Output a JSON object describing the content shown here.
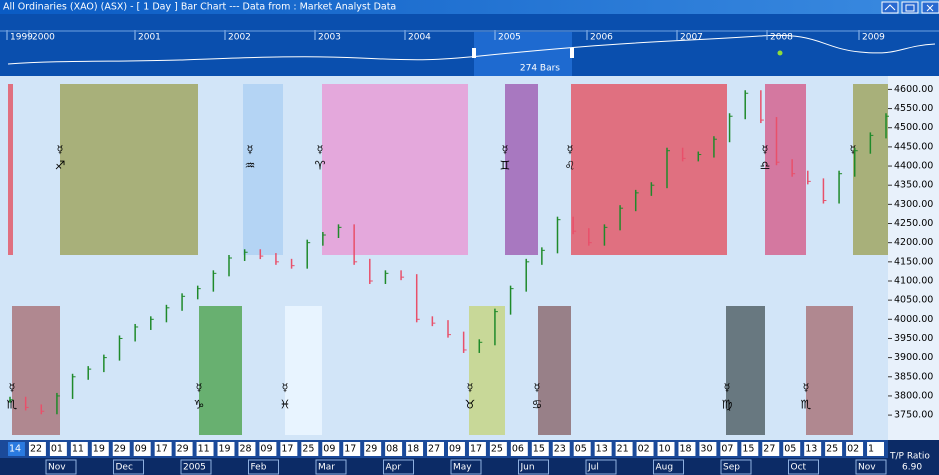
{
  "window": {
    "title": "All Ordinaries (XAO) (ASX) - [ 1 Day ] Bar Chart --- Data from : Market Analyst Data"
  },
  "navigator": {
    "years": [
      "1999",
      "2000",
      "2001",
      "2002",
      "2003",
      "2004",
      "2005",
      "2006",
      "2007",
      "2008",
      "2009"
    ],
    "bars_label": "274 Bars"
  },
  "chart_data": {
    "type": "bar",
    "values": [
      3790,
      3770,
      3760,
      3800,
      3850,
      3870,
      3900,
      3950,
      3980,
      4000,
      4030,
      4060,
      4080,
      4120,
      4160,
      4175,
      4165,
      4150,
      4140,
      4200,
      4220,
      4240,
      4150,
      4100,
      4120,
      4110,
      4000,
      3990,
      3960,
      3920,
      3940,
      4020,
      4080,
      4150,
      4180,
      4260,
      4230,
      4200,
      4240,
      4290,
      4330,
      4350,
      4440,
      4420,
      4430,
      4470,
      4530,
      4590,
      4520,
      4410,
      4380,
      4360,
      4310,
      4380,
      4440,
      4480,
      4530
    ],
    "up_color": "#1f8a2a",
    "down_color": "#e8506a",
    "ylim": [
      3685,
      4635
    ],
    "yticks": [
      {
        "value": 4600,
        "label": "4600.00"
      },
      {
        "value": 4550,
        "label": "4550.00"
      },
      {
        "value": 4500,
        "label": "4500.00"
      },
      {
        "value": 4450,
        "label": "4450.00"
      },
      {
        "value": 4400,
        "label": "4400.00"
      },
      {
        "value": 4350,
        "label": "4350.00"
      },
      {
        "value": 4300,
        "label": "4300.00"
      },
      {
        "value": 4250,
        "label": "4250.00"
      },
      {
        "value": 4200,
        "label": "4200.00"
      },
      {
        "value": 4150,
        "label": "4150.00"
      },
      {
        "value": 4100,
        "label": "4100.00"
      },
      {
        "value": 4050,
        "label": "4050.00"
      },
      {
        "value": 4000,
        "label": "4000.00"
      },
      {
        "value": 3950,
        "label": "3950.00"
      },
      {
        "value": 3900,
        "label": "3900.00"
      },
      {
        "value": 3850,
        "label": "3850.00"
      },
      {
        "value": 3800,
        "label": "3800.00"
      },
      {
        "value": 3750,
        "label": "3750.00"
      }
    ],
    "upper_zones": [
      {
        "color": "#e07080"
      },
      {
        "color": "#a8b07a",
        "planet": "☿",
        "sign": "♐"
      },
      {
        "color": "#b4d4f4",
        "planet": "☿",
        "sign": "♒"
      },
      {
        "color": "#e4a8dc",
        "planet": "☿",
        "sign": "♈"
      },
      {
        "color": "#a878c0",
        "planet": "☿",
        "sign": "♊"
      },
      {
        "color": "#e07080",
        "planet": "☿",
        "sign": "♌"
      },
      {
        "color": "#d478a0",
        "planet": "☿",
        "sign": "♎"
      },
      {
        "color": "#a8b07a",
        "planet": "☿"
      }
    ],
    "lower_zones": [
      {
        "color": "#b08890",
        "planet": "☿",
        "sign": "♏"
      },
      {
        "color": "#68b070",
        "planet": "☿",
        "sign": "♑"
      },
      {
        "color": "#e8f4ff",
        "planet": "☿",
        "sign": "♓"
      },
      {
        "color": "#c8d898",
        "planet": "☿",
        "sign": "♉"
      },
      {
        "color": "#988088",
        "planet": "☿",
        "sign": "♋"
      },
      {
        "color": "#687880",
        "planet": "☿",
        "sign": "♍"
      },
      {
        "color": "#b08890",
        "planet": "☿",
        "sign": "♏"
      }
    ],
    "day_labels": [
      "14",
      "22",
      "01",
      "11",
      "19",
      "29",
      "09",
      "17",
      "29",
      "11",
      "19",
      "28",
      "09",
      "17",
      "25",
      "09",
      "17",
      "29",
      "08",
      "18",
      "27",
      "09",
      "17",
      "25",
      "06",
      "15",
      "23",
      "05",
      "13",
      "21",
      "02",
      "10",
      "18",
      "30",
      "07",
      "15",
      "27",
      "05",
      "13",
      "25",
      "02",
      "1"
    ],
    "month_labels": [
      "Nov",
      "Dec",
      "2005",
      "Feb",
      "Mar",
      "Apr",
      "May",
      "Jun",
      "Jul",
      "Aug",
      "Sep",
      "Oct",
      "Nov"
    ]
  },
  "status": {
    "label": "T/P Ratio",
    "value": "6.90"
  }
}
